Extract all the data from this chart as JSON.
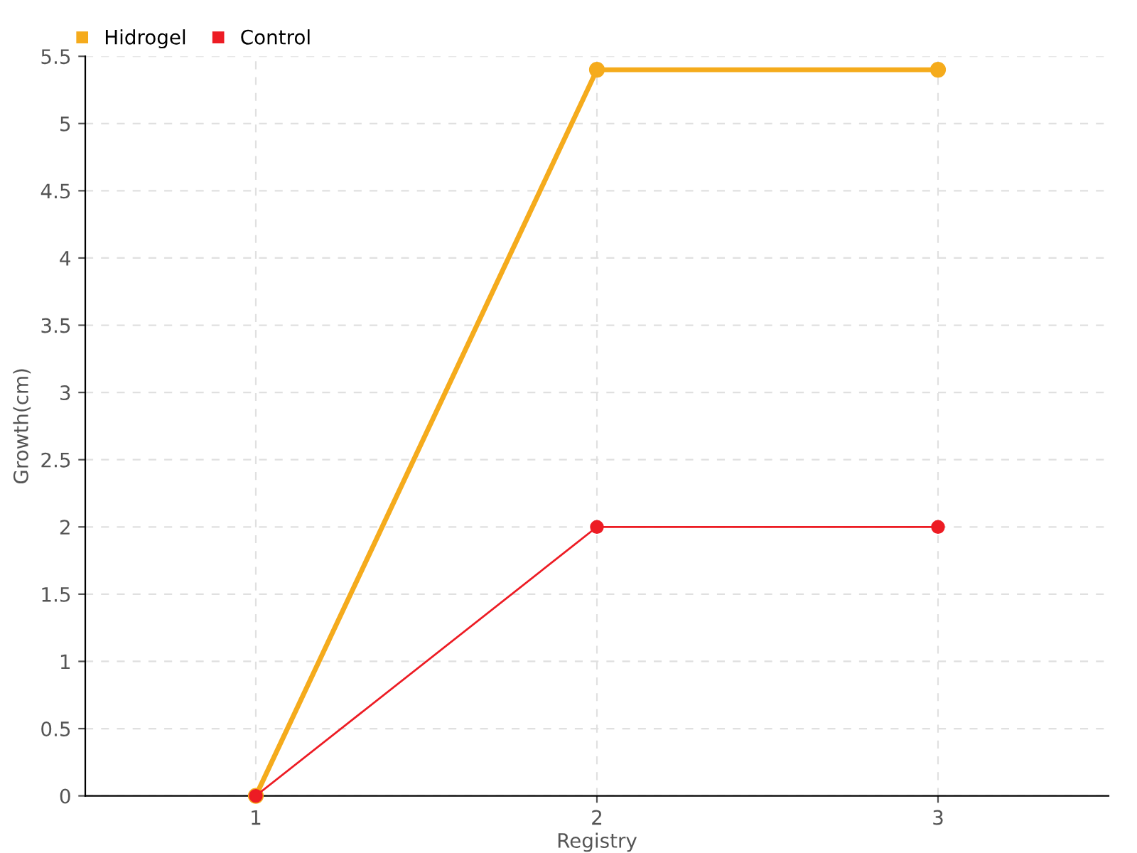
{
  "chart_data": {
    "type": "line",
    "xlabel": "Registry",
    "ylabel": "Growth(cm)",
    "x": [
      1,
      2,
      3
    ],
    "series": [
      {
        "name": "Hidrogel",
        "color": "#f5ab1c",
        "values": [
          0,
          5.4,
          5.4
        ]
      },
      {
        "name": "Control",
        "color": "#ed1c24",
        "values": [
          0,
          2,
          2
        ]
      }
    ],
    "xlim": [
      0.5,
      3.5
    ],
    "xticks": [
      1,
      2,
      3
    ],
    "ylim": [
      0,
      5.5
    ],
    "yticks": [
      0,
      0.5,
      1,
      1.5,
      2,
      2.5,
      3,
      3.5,
      4,
      4.5,
      5,
      5.5
    ],
    "grid": true,
    "legend": "top left",
    "marker": "circle",
    "line_style": "solid"
  }
}
